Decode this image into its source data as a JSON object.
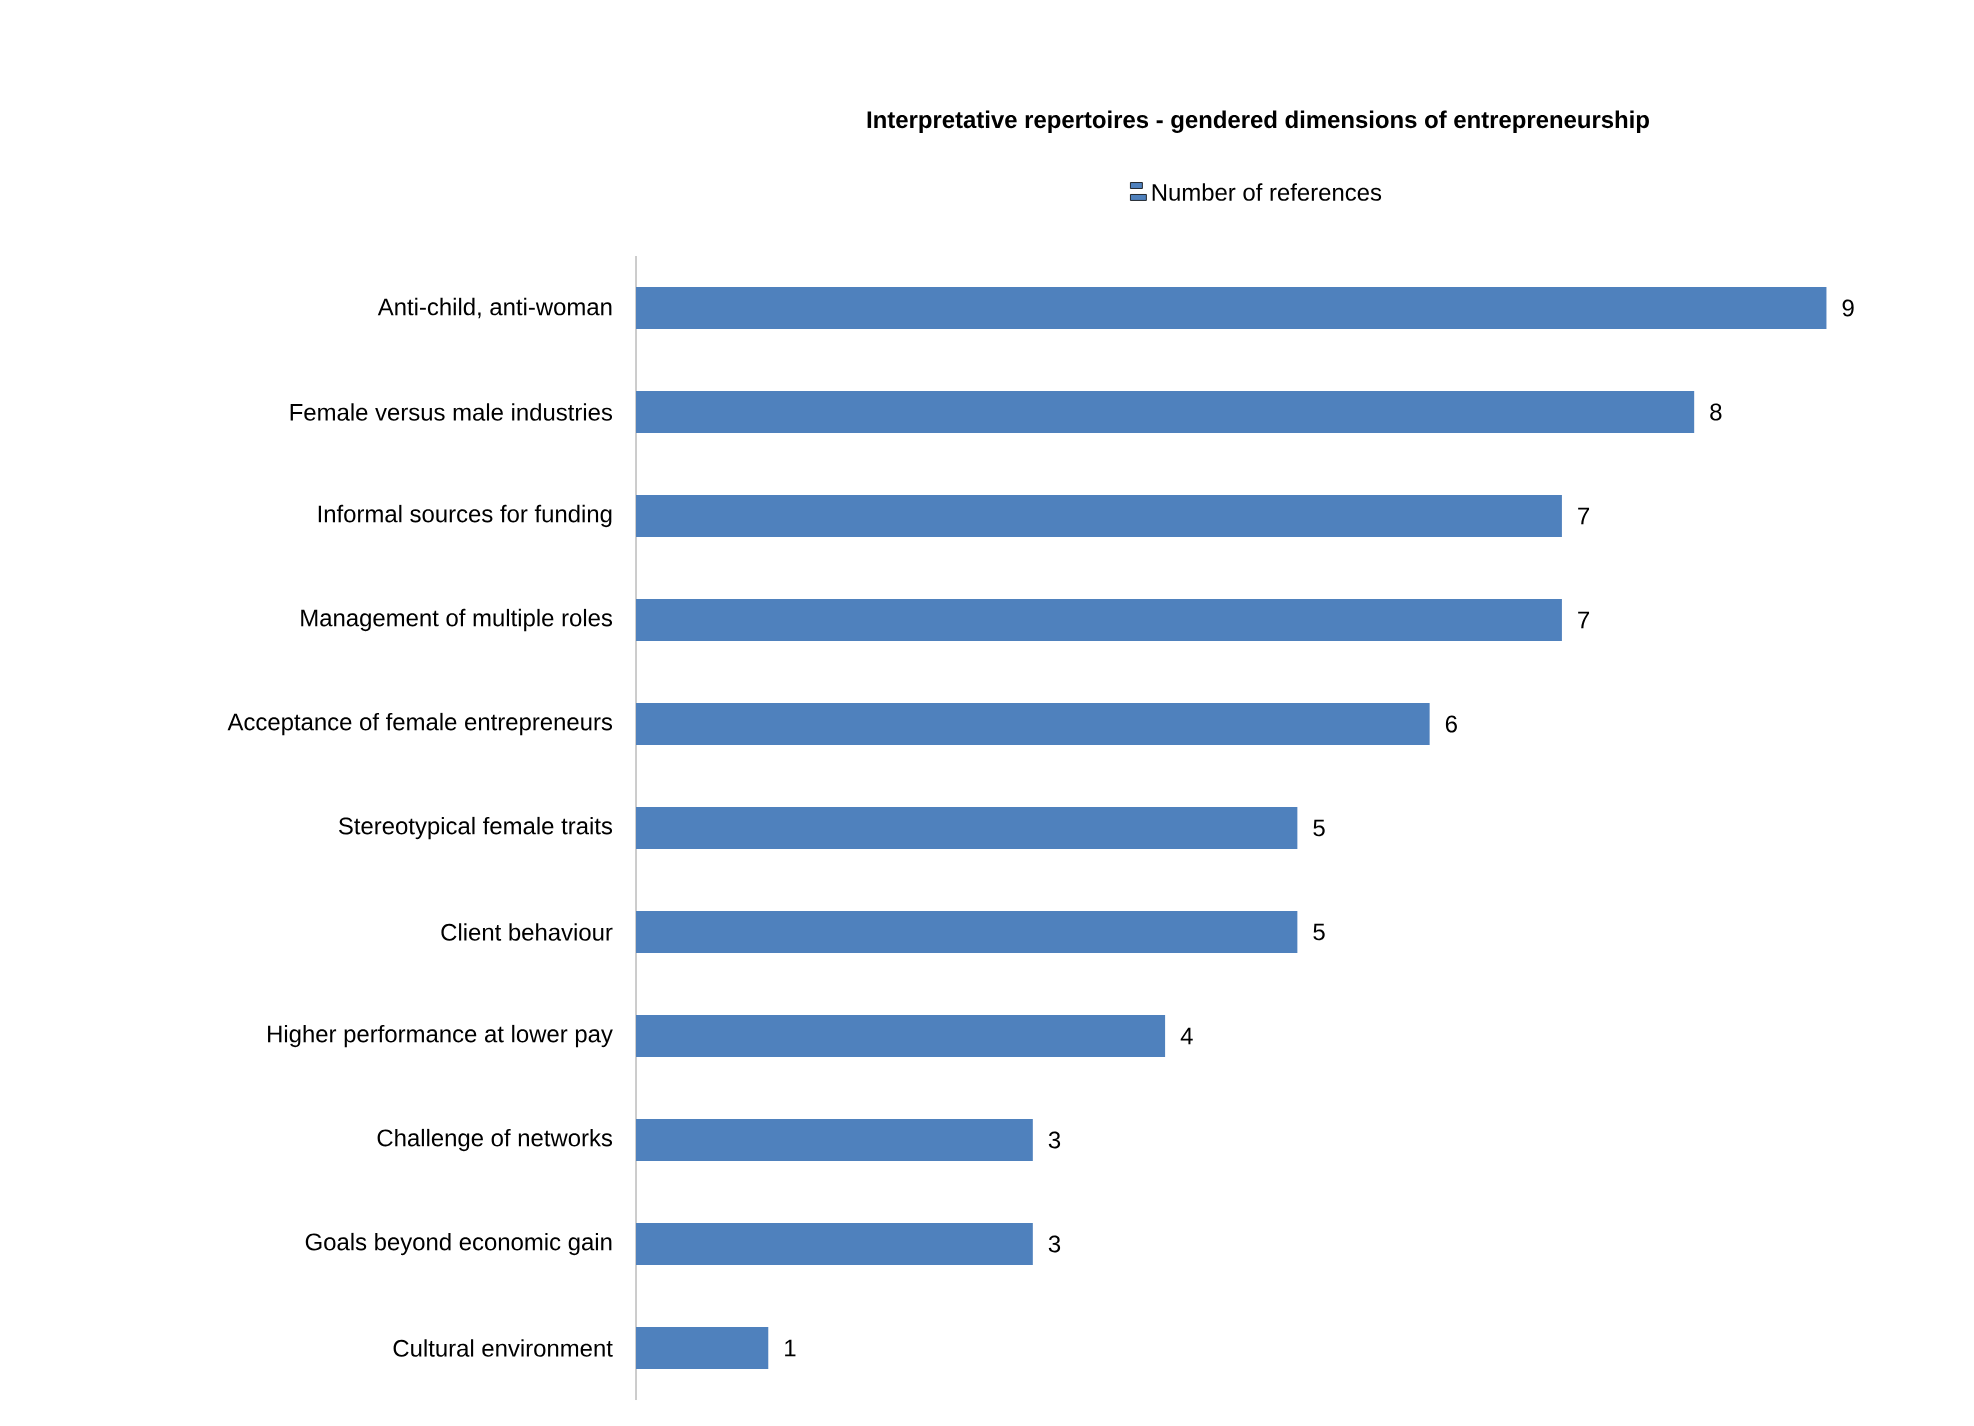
{
  "chart_data": {
    "type": "bar",
    "orientation": "horizontal",
    "title": "Interpretative repertoires - gendered dimensions of entrepreneurship",
    "categories": [
      "Anti-child, anti-woman",
      "Female versus male industries",
      "Informal sources for funding",
      "Management of multiple roles",
      "Acceptance of female entrepreneurs",
      "Stereotypical female traits",
      "Client behaviour",
      "Higher performance at lower pay",
      "Challenge of networks",
      "Goals beyond economic gain",
      "Cultural environment"
    ],
    "series": [
      {
        "name": "Number of references",
        "color": "#4f81bd",
        "values": [
          9,
          8,
          7,
          7,
          6,
          5,
          5,
          4,
          3,
          3,
          1
        ]
      }
    ],
    "data_labels": true,
    "legend": "top"
  }
}
